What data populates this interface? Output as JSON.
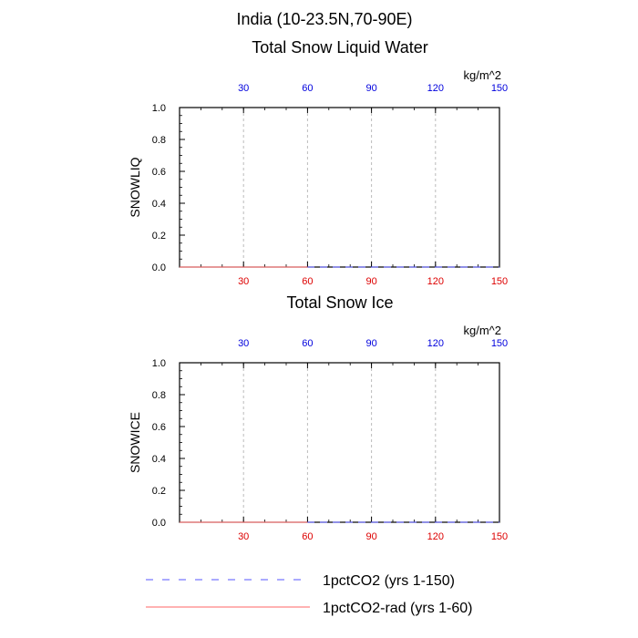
{
  "figure": {
    "title": "India (10-23.5N,70-90E)"
  },
  "colors": {
    "series_1pctCO2": "#5555ff",
    "series_1pctCO2_rad": "#ff6666",
    "top_ticks": "#0000dd",
    "bottom_ticks": "#dd0000",
    "grid": "#bbbbbb"
  },
  "chart_data": [
    {
      "type": "line",
      "title": "Total Snow Liquid Water",
      "ylabel": "SNOWLIQ",
      "units": "kg/m^2",
      "xlim": [
        0,
        150
      ],
      "ylim": [
        0,
        1.0
      ],
      "bottom_axis_ticks": [
        "30",
        "60",
        "90",
        "120",
        "150"
      ],
      "top_axis_ticks": [
        "30",
        "60",
        "90",
        "120",
        "150"
      ],
      "y_ticks": [
        "0.0",
        "0.2",
        "0.4",
        "0.6",
        "0.8",
        "1.0"
      ],
      "grid": "vertical dashed",
      "series": [
        {
          "name": "1pctCO2 (yrs 1-150)",
          "x": [
            0,
            150
          ],
          "y": [
            0,
            0
          ]
        },
        {
          "name": "1pctCO2-rad (yrs 1-60)",
          "x": [
            0,
            60
          ],
          "y": [
            0,
            0
          ]
        }
      ]
    },
    {
      "type": "line",
      "title": "Total Snow Ice",
      "ylabel": "SNOWICE",
      "units": "kg/m^2",
      "xlim": [
        0,
        150
      ],
      "ylim": [
        0,
        1.0
      ],
      "bottom_axis_ticks": [
        "30",
        "60",
        "90",
        "120",
        "150"
      ],
      "top_axis_ticks": [
        "30",
        "60",
        "90",
        "120",
        "150"
      ],
      "y_ticks": [
        "0.0",
        "0.2",
        "0.4",
        "0.6",
        "0.8",
        "1.0"
      ],
      "grid": "vertical dashed",
      "series": [
        {
          "name": "1pctCO2 (yrs 1-150)",
          "x": [
            0,
            150
          ],
          "y": [
            0,
            0
          ]
        },
        {
          "name": "1pctCO2-rad (yrs 1-60)",
          "x": [
            0,
            60
          ],
          "y": [
            0,
            0
          ]
        }
      ]
    }
  ],
  "legend": {
    "placement": "bottom",
    "entries": [
      {
        "label": "1pctCO2 (yrs 1-150)",
        "style": "dashed"
      },
      {
        "label": "1pctCO2-rad (yrs 1-60)",
        "style": "solid"
      }
    ]
  }
}
